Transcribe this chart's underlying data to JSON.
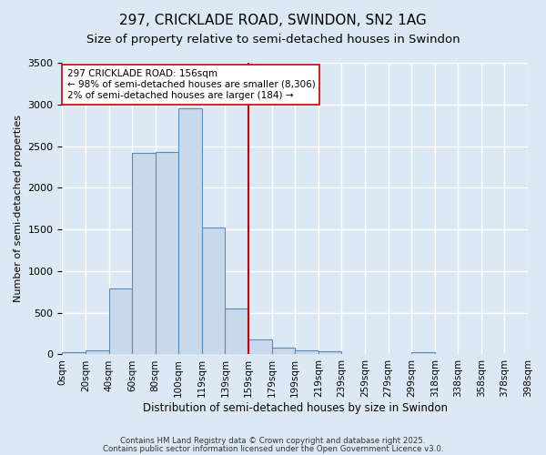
{
  "title_line1": "297, CRICKLADE ROAD, SWINDON, SN2 1AG",
  "title_line2": "Size of property relative to semi-detached houses in Swindon",
  "xlabel": "Distribution of semi-detached houses by size in Swindon",
  "ylabel": "Number of semi-detached properties",
  "bin_labels": [
    "0sqm",
    "20sqm",
    "40sqm",
    "60sqm",
    "80sqm",
    "100sqm",
    "119sqm",
    "139sqm",
    "159sqm",
    "179sqm",
    "199sqm",
    "219sqm",
    "239sqm",
    "259sqm",
    "279sqm",
    "299sqm",
    "318sqm",
    "338sqm",
    "358sqm",
    "378sqm",
    "398sqm"
  ],
  "bar_heights": [
    30,
    50,
    790,
    2420,
    2430,
    2950,
    1520,
    555,
    175,
    80,
    50,
    35,
    5,
    0,
    0,
    30,
    0,
    0,
    0,
    0
  ],
  "bar_color": "#c9d9ec",
  "bar_edge_color": "#5b8ab5",
  "vline_x": 8,
  "vline_color": "#cc0000",
  "annotation_text": "297 CRICKLADE ROAD: 156sqm\n← 98% of semi-detached houses are smaller (8,306)\n2% of semi-detached houses are larger (184) →",
  "annotation_box_color": "#ffffff",
  "annotation_box_edge": "#cc0000",
  "ylim": [
    0,
    3500
  ],
  "yticks": [
    0,
    500,
    1000,
    1500,
    2000,
    2500,
    3000,
    3500
  ],
  "background_color": "#dce9f5",
  "grid_color": "#ffffff",
  "footer_line1": "Contains HM Land Registry data © Crown copyright and database right 2025.",
  "footer_line2": "Contains public sector information licensed under the Open Government Licence v3.0."
}
